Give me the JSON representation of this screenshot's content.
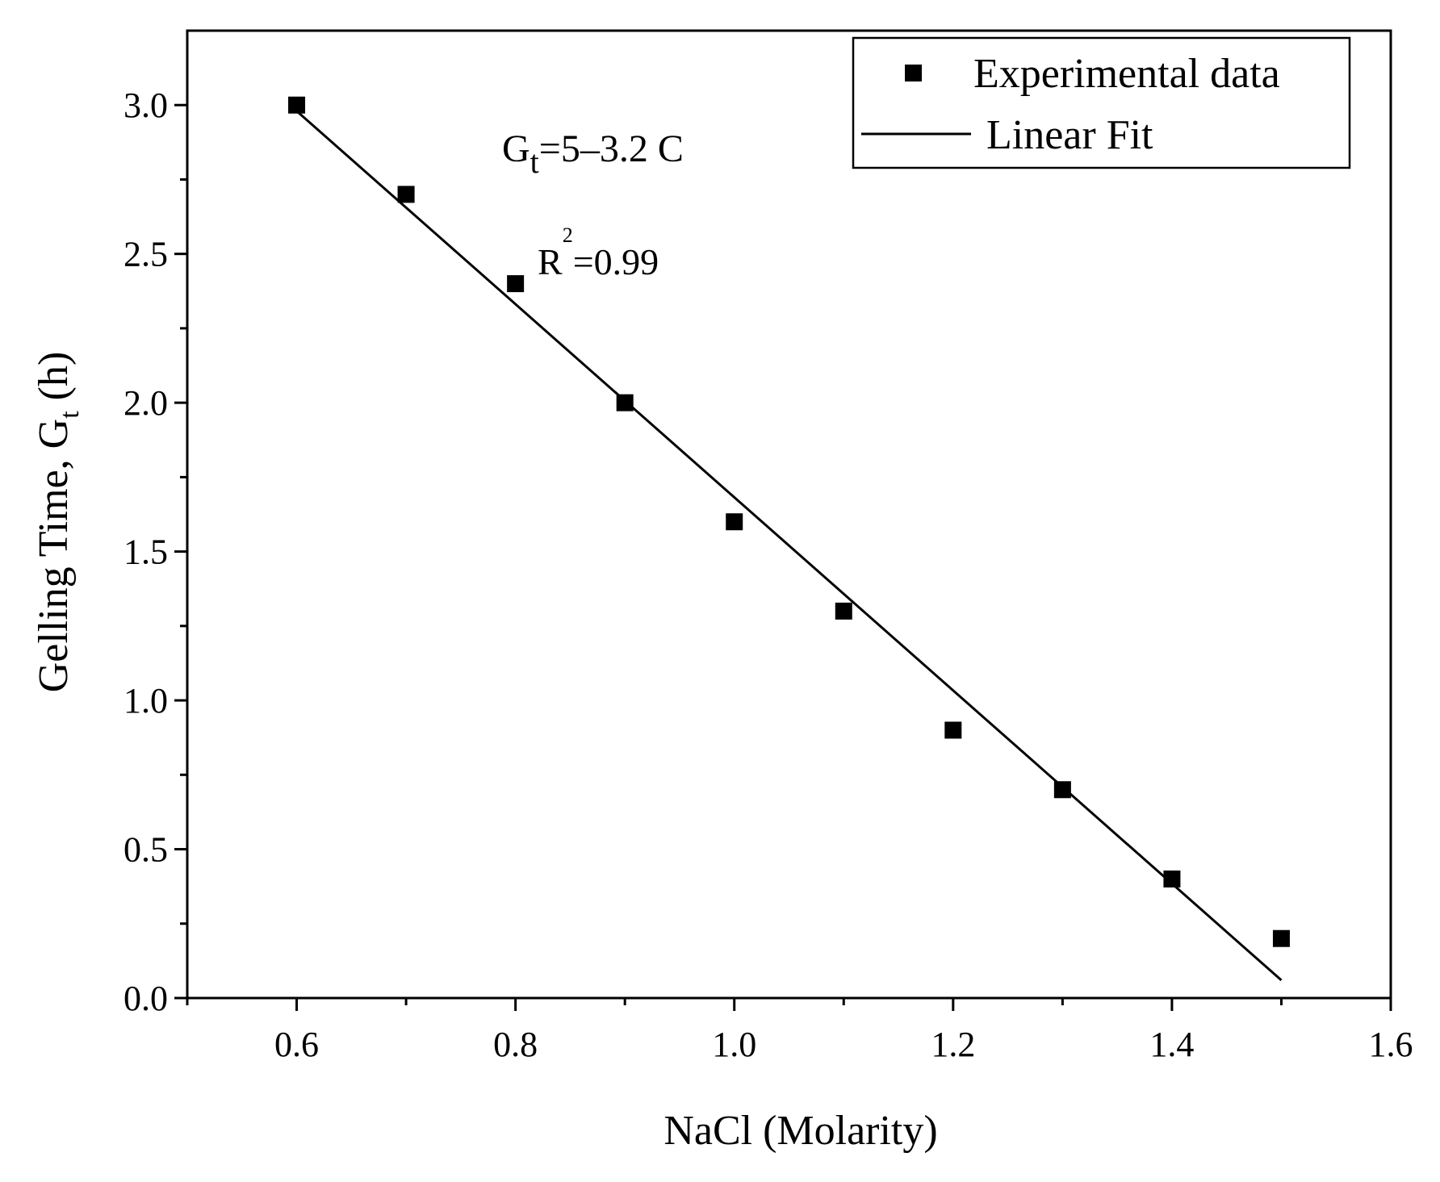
{
  "colors": {
    "ink": "#000000",
    "background": "#ffffff"
  },
  "chart_data": {
    "type": "scatter",
    "title": "",
    "xlabel": "NaCl (Molarity)",
    "ylabel_main": "Gelling Time, G",
    "ylabel_sub": "t",
    "ylabel_tail": " (h)",
    "xlim": [
      0.5,
      1.6
    ],
    "ylim": [
      0.0,
      3.25
    ],
    "xticks": [
      0.6,
      0.8,
      1.0,
      1.2,
      1.4,
      1.6
    ],
    "xtick_labels": [
      "0.6",
      "0.8",
      "1.0",
      "1.2",
      "1.4",
      "1.6"
    ],
    "xminor": [
      0.5,
      0.7,
      0.9,
      1.1,
      1.3,
      1.5
    ],
    "yticks": [
      0.0,
      0.5,
      1.0,
      1.5,
      2.0,
      2.5,
      3.0
    ],
    "ytick_labels": [
      "0.0",
      "0.5",
      "1.0",
      "1.5",
      "2.0",
      "2.5",
      "3.0"
    ],
    "yminor": [
      0.25,
      0.75,
      1.25,
      1.75,
      2.25,
      2.75
    ],
    "series": [
      {
        "name": "Experimental data",
        "kind": "scatter",
        "marker": "square",
        "x": [
          0.6,
          0.7,
          0.8,
          0.9,
          1.0,
          1.1,
          1.2,
          1.3,
          1.4,
          1.5
        ],
        "y": [
          3.0,
          2.7,
          2.4,
          2.0,
          1.6,
          1.3,
          0.9,
          0.7,
          0.4,
          0.2
        ]
      },
      {
        "name": "Linear Fit",
        "kind": "line",
        "x": [
          0.6,
          1.5
        ],
        "y": [
          2.98,
          0.06
        ]
      }
    ],
    "legend": {
      "position": "top-right",
      "entries": [
        "Experimental data",
        "Linear Fit"
      ]
    },
    "annotations": {
      "equation_main": "G",
      "equation_sub": "t",
      "equation_tail": "=5–3.2 C",
      "r2_main": "R",
      "r2_sup": "2",
      "r2_tail": "=0.99"
    }
  }
}
